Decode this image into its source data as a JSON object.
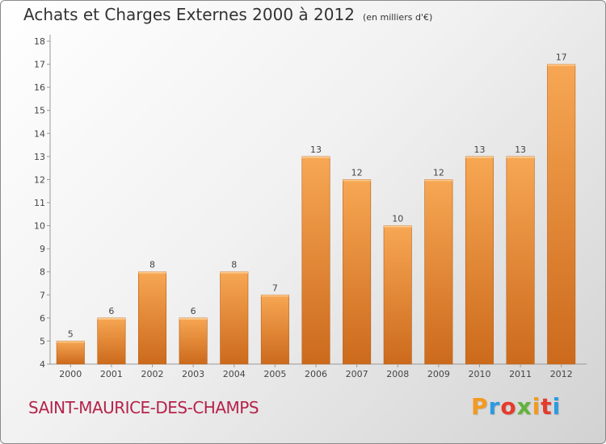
{
  "title": "Achats et Charges Externes 2000 à 2012",
  "subtitle": "(en milliers d'€)",
  "city": "SAINT-MAURICE-DES-CHAMPS",
  "logo": {
    "letters": [
      "P",
      "r",
      "o",
      "x",
      "i",
      "t",
      "i"
    ],
    "colors": [
      "#f39a1f",
      "#2c9be0",
      "#e53b2c",
      "#61b33b",
      "#f39a1f",
      "#e53b2c",
      "#2c9be0"
    ]
  },
  "colors": {
    "bar_light": "#f7a753",
    "bar_dark": "#cc6a1c",
    "city": "#b5234a"
  },
  "chart_data": {
    "type": "bar",
    "title": "Achats et Charges Externes 2000 à 2012",
    "subtitle": "(en milliers d'€)",
    "categories": [
      "2000",
      "2001",
      "2002",
      "2003",
      "2004",
      "2005",
      "2006",
      "2007",
      "2008",
      "2009",
      "2010",
      "2011",
      "2012"
    ],
    "values": [
      5,
      6,
      8,
      6,
      8,
      7,
      13,
      12,
      10,
      12,
      13,
      13,
      17
    ],
    "data_labels": [
      "5",
      "6",
      "8",
      "6",
      "8",
      "7",
      "13",
      "12",
      "10",
      "12",
      "13",
      "13",
      "17"
    ],
    "xlabel": "",
    "ylabel": "",
    "ylim": [
      4,
      18
    ],
    "yticks": [
      4,
      5,
      6,
      7,
      8,
      9,
      10,
      11,
      12,
      13,
      14,
      15,
      16,
      17,
      18
    ],
    "grid": false
  }
}
